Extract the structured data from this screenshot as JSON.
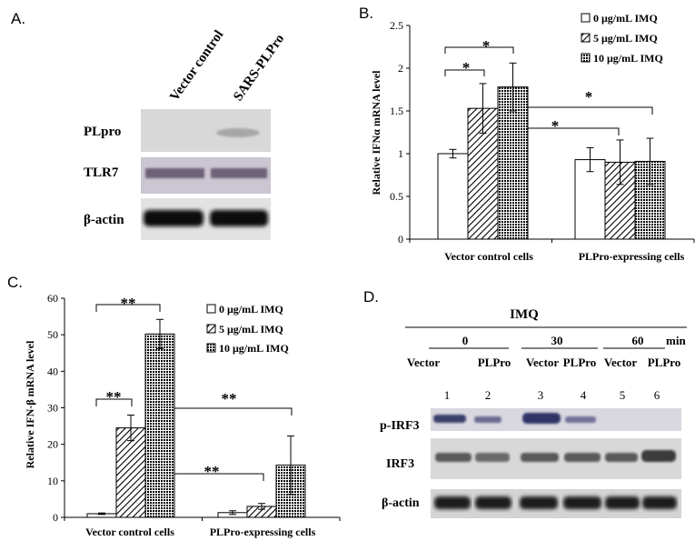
{
  "panels": {
    "A": {
      "label": "A.",
      "lanes": [
        "Vector control",
        "SARS-PLPro"
      ],
      "rows": [
        "PLpro",
        "TLR7",
        "β-actin"
      ]
    },
    "D": {
      "label": "D.",
      "treatment": "IMQ",
      "times": [
        "0",
        "30",
        "60"
      ],
      "time_unit": "min",
      "conditions": [
        "Vector",
        "PLPro",
        "Vector",
        "PLPro",
        "Vector",
        "PLPro"
      ],
      "lane_numbers": [
        "1",
        "2",
        "3",
        "4",
        "5",
        "6"
      ],
      "rows": [
        "p-IRF3",
        "IRF3",
        "β-actin"
      ]
    }
  },
  "chart_data": [
    {
      "panel": "B.",
      "type": "bar",
      "ylabel": "Relative IFNα mRNA level",
      "ylim": [
        0,
        2.5
      ],
      "yticks": [
        "0",
        "0.5",
        "1",
        "1.5",
        "2",
        "2.5"
      ],
      "categories": [
        "Vector control cells",
        "PLPro-expressing cells"
      ],
      "series": [
        {
          "name": "0 μg/mL IMQ",
          "values": [
            1.0,
            0.93
          ],
          "errors": [
            0.05,
            0.14
          ],
          "fill": "white"
        },
        {
          "name": "5 μg/mL IMQ",
          "values": [
            1.53,
            0.9
          ],
          "errors": [
            0.29,
            0.26
          ],
          "fill": "diagonal"
        },
        {
          "name": "10 μg/mL IMQ",
          "values": [
            1.78,
            0.91
          ],
          "errors": [
            0.28,
            0.27
          ],
          "fill": "dotted"
        }
      ],
      "legend": "top-right",
      "significance": [
        "*",
        "*",
        "*",
        "*"
      ]
    },
    {
      "panel": "C.",
      "type": "bar",
      "ylabel": "Relative IFN-β mRNA level",
      "ylim": [
        0,
        60
      ],
      "yticks": [
        "0",
        "10",
        "20",
        "30",
        "40",
        "50",
        "60"
      ],
      "categories": [
        "Vector control cells",
        "PLPro-expressing cells"
      ],
      "series": [
        {
          "name": "0 μg/mL IMQ",
          "values": [
            1.0,
            1.3
          ],
          "errors": [
            0.2,
            0.5
          ],
          "fill": "white"
        },
        {
          "name": "5 μg/mL IMQ",
          "values": [
            24.5,
            3.0
          ],
          "errors": [
            3.5,
            0.8
          ],
          "fill": "diagonal"
        },
        {
          "name": "10 μg/mL IMQ",
          "values": [
            50.2,
            14.3
          ],
          "errors": [
            4.0,
            8.0
          ],
          "fill": "dotted"
        }
      ],
      "legend": "top-right",
      "significance": [
        "**",
        "**",
        "**",
        "**"
      ]
    }
  ]
}
